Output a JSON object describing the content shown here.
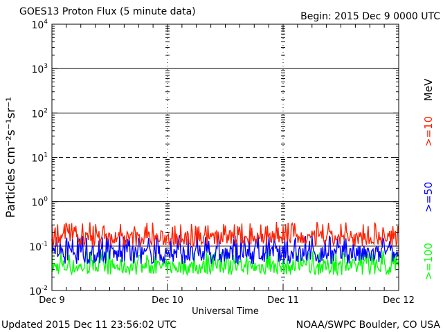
{
  "header": {
    "title": "GOES13 Proton Flux (5 minute data)",
    "begin": "Begin: 2015 Dec 9 0000 UTC"
  },
  "footer": {
    "updated": "Updated 2015 Dec 11 23:56:02 UTC",
    "credit": "NOAA/SWPC Boulder, CO USA"
  },
  "chart_data": {
    "type": "line",
    "title": "GOES13 Proton Flux (5 minute data)",
    "xlabel": "Universal Time",
    "ylabel": "Particles cm⁻²s⁻¹sr⁻¹",
    "y_scale": "log",
    "ylim": [
      0.01,
      10000
    ],
    "xlim": [
      0,
      72
    ],
    "x_unit": "hours since 2015 Dec 9 0000 UTC",
    "x_tick_labels": [
      "Dec 9",
      "Dec 10",
      "Dec 11",
      "Dec 12"
    ],
    "y_tick_labels": [
      {
        "base": "10",
        "exp": "-2"
      },
      {
        "base": "10",
        "exp": "-1"
      },
      {
        "base": "10",
        "exp": "0"
      },
      {
        "base": "10",
        "exp": "1"
      },
      {
        "base": "10",
        "exp": "2"
      },
      {
        "base": "10",
        "exp": "3"
      },
      {
        "base": "10",
        "exp": "4"
      }
    ],
    "reference_lines": [
      {
        "value": 10,
        "style": "dashed"
      },
      {
        "value": 1,
        "style": "solid"
      },
      {
        "value": 100,
        "style": "solid"
      },
      {
        "value": 1000,
        "style": "solid"
      },
      {
        "value": 0.1,
        "style": "solid"
      }
    ],
    "legend_unit": "MeV",
    "series": [
      {
        "name": ">=10",
        "color": "#ff2000",
        "typical_range": [
          0.08,
          0.35
        ]
      },
      {
        "name": ">=50",
        "color": "#0000ff",
        "typical_range": [
          0.03,
          0.18
        ]
      },
      {
        "name": ">=100",
        "color": "#00ff00",
        "typical_range": [
          0.018,
          0.08
        ]
      }
    ]
  }
}
